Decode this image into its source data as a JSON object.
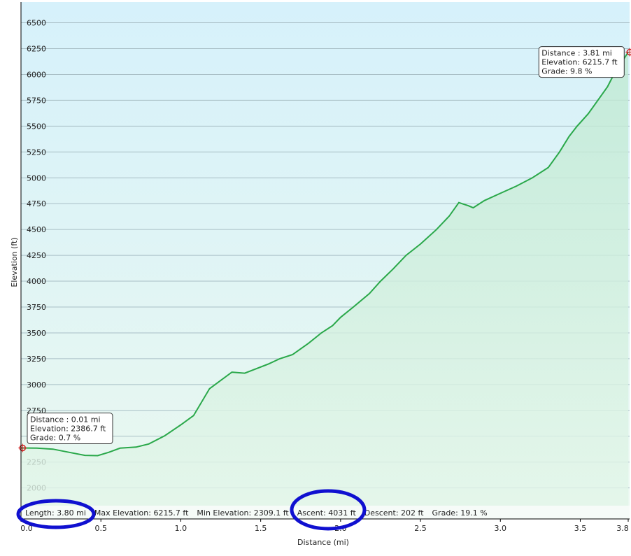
{
  "chart_data": {
    "type": "line",
    "x_label": "Distance  (mi)",
    "y_label": "Elevation (ft)",
    "x": [
      0,
      0.1,
      0.2,
      0.3,
      0.4,
      0.48,
      0.55,
      0.62,
      0.72,
      0.8,
      0.9,
      1.0,
      1.08,
      1.18,
      1.25,
      1.32,
      1.4,
      1.45,
      1.55,
      1.62,
      1.7,
      1.8,
      1.88,
      1.95,
      2.0,
      2.08,
      2.18,
      2.25,
      2.33,
      2.41,
      2.5,
      2.6,
      2.68,
      2.74,
      2.8,
      2.83,
      2.9,
      3.0,
      3.1,
      3.2,
      3.3,
      3.37,
      3.43,
      3.48,
      3.55,
      3.61,
      3.67,
      3.71,
      3.76,
      3.8
    ],
    "series": [
      {
        "color": "#2aa84a",
        "values": [
          2387,
          2385,
          2375,
          2345,
          2315,
          2312,
          2345,
          2385,
          2395,
          2425,
          2505,
          2610,
          2700,
          2960,
          3040,
          3120,
          3110,
          3140,
          3200,
          3250,
          3290,
          3400,
          3500,
          3570,
          3650,
          3750,
          3880,
          4000,
          4120,
          4250,
          4360,
          4500,
          4630,
          4760,
          4730,
          4710,
          4780,
          4850,
          4920,
          5000,
          5100,
          5250,
          5400,
          5500,
          5620,
          5750,
          5880,
          6000,
          6120,
          6216
        ]
      }
    ],
    "xlim": [
      0,
      3.8
    ],
    "xticks": [
      {
        "value": 0,
        "label": "0.0"
      },
      0.5,
      {
        "value": 1,
        "label": "1.0"
      },
      1.5,
      {
        "value": 2,
        "label": "2.0"
      },
      2.5,
      {
        "value": 3,
        "label": "3.0"
      },
      3.5,
      3.8
    ],
    "ylim": [
      1700,
      6700
    ],
    "yticks": [
      2000,
      2250,
      2500,
      2750,
      3000,
      3250,
      3500,
      3750,
      4000,
      4250,
      4500,
      4750,
      5000,
      5250,
      5500,
      5750,
      6000,
      6250,
      6500
    ],
    "grid": true,
    "tooltips": [
      {
        "x": 0.01,
        "y": 2386.7,
        "lines": [
          "Distance  : 0.01 mi",
          "Elevation: 2386.7 ft",
          "Grade: 0.7 %"
        ]
      },
      {
        "x": 3.81,
        "y": 6215.7,
        "lines": [
          "Distance  : 3.81 mi",
          "Elevation: 6215.7 ft",
          "Grade: 9.8 %"
        ]
      }
    ],
    "stats": [
      "Length: 3.80 mi",
      "Max Elevation: 6215.7 ft",
      "Min Elevation: 2309.1 ft",
      "Ascent: 4031 ft",
      "Descent: 202 ft",
      "Grade: 19.1 %"
    ]
  }
}
